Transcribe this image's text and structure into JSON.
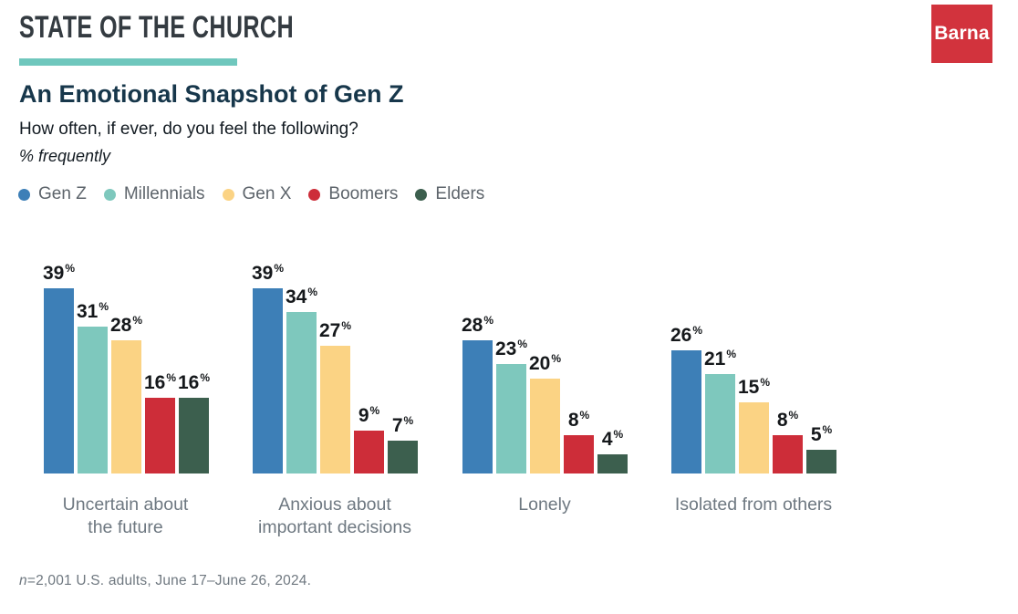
{
  "header": {
    "brand": "STATE OF THE CHURCH",
    "logo_text": "Barna"
  },
  "title": "An Emotional Snapshot of Gen Z",
  "subtitle": "How often, if ever, do you feel the following?",
  "unit_note": "% frequently",
  "footnote": {
    "n_label": "n",
    "text": "=2,001 U.S. adults, June 17–June 26, 2024."
  },
  "colors": {
    "accent_teal": "#6fc7bd",
    "brand_red": "#d2333d",
    "title_navy": "#17374b",
    "value_text": "#15181b",
    "category_gray": "#6e7881",
    "legend_gray": "#5d646b"
  },
  "chart_data": {
    "type": "bar",
    "title": "An Emotional Snapshot of Gen Z",
    "subtitle": "How often, if ever, do you feel the following?",
    "unit": "% frequently",
    "value_suffix": "%",
    "ylim": [
      0,
      40
    ],
    "grid": false,
    "legend_position": "top",
    "categories": [
      "Uncertain about\nthe future",
      "Anxious about\nimportant decisions",
      "Lonely",
      "Isolated from others"
    ],
    "series": [
      {
        "name": "Gen Z",
        "color": "#3d7fb7",
        "values": [
          39,
          39,
          28,
          26
        ]
      },
      {
        "name": "Millennials",
        "color": "#7ec8bd",
        "values": [
          31,
          34,
          23,
          21
        ]
      },
      {
        "name": "Gen X",
        "color": "#fbd384",
        "values": [
          28,
          27,
          20,
          15
        ]
      },
      {
        "name": "Boomers",
        "color": "#cd2d39",
        "values": [
          16,
          9,
          8,
          8
        ]
      },
      {
        "name": "Elders",
        "color": "#3c5f4e",
        "values": [
          16,
          7,
          4,
          5
        ]
      }
    ]
  }
}
